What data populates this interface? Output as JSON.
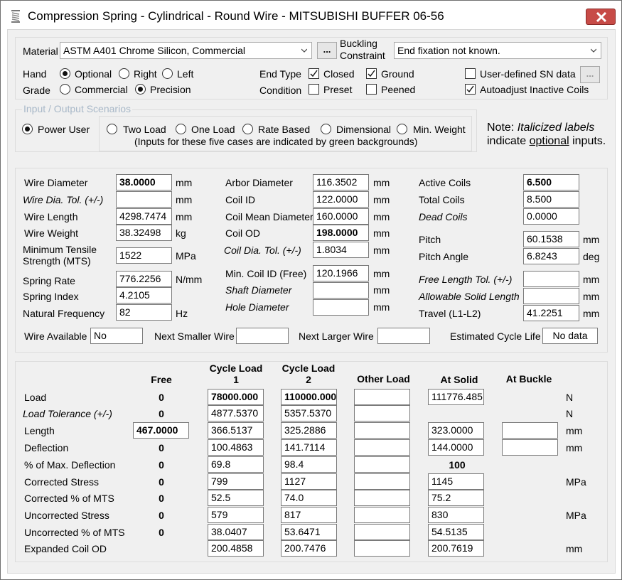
{
  "window": {
    "title": "Compression Spring - Cylindrical - Round Wire - MITSUBISHI BUFFER 06-56"
  },
  "icons": {
    "app": "spring-icon",
    "close": "close-icon",
    "dropdown": "chevron-down-icon",
    "check": "check-icon"
  },
  "colors": {
    "close_button": "#c74b47",
    "group_label": "#a8b8c8",
    "panel_bg": "#f0f0f0"
  },
  "top": {
    "material_label": "Material",
    "material_value": "ASTM A401 Chrome Silicon, Commercial",
    "material_more": "...",
    "buckling_label_1": "Buckling",
    "buckling_label_2": "Constraint",
    "buckling_value": "End fixation not known.",
    "hand_label": "Hand",
    "hand_options": [
      "Optional",
      "Right",
      "Left"
    ],
    "grade_label": "Grade",
    "grade_options": [
      "Commercial",
      "Precision"
    ],
    "endtype_label": "End Type",
    "endtype_closed": "Closed",
    "endtype_ground": "Ground",
    "condition_label": "Condition",
    "condition_preset": "Preset",
    "condition_peened": "Peened",
    "sn_label": "User-defined SN data",
    "sn_more": "...",
    "autoadjust_label": "Autoadjust Inactive Coils"
  },
  "scenarios": {
    "group_label": "Input / Output Scenarios",
    "power_user": "Power User",
    "options": [
      "Two Load",
      "One Load",
      "Rate Based",
      "Dimensional",
      "Min. Weight"
    ],
    "note": "(Inputs for these five cases are indicated by green backgrounds)",
    "side_note_prefix": "Note: ",
    "side_note_italic": "Italicized labels",
    "side_note_line2_a": "indicate ",
    "side_note_underline": "optional",
    "side_note_line2_b": " inputs."
  },
  "geometry": {
    "col1": {
      "wire_diameter": {
        "label": "Wire Diameter",
        "value": "38.0000",
        "unit": "mm"
      },
      "wire_tol": {
        "label": "Wire Dia. Tol. (+/-)",
        "value": "",
        "unit": "mm"
      },
      "wire_length": {
        "label": "Wire Length",
        "value": "4298.7474",
        "unit": "mm"
      },
      "wire_weight": {
        "label": "Wire Weight",
        "value": "38.32498",
        "unit": "kg"
      },
      "mts_label_1": "Minimum Tensile",
      "mts_label_2": "Strength  (MTS)",
      "mts_value": "1522",
      "mts_unit": "MPa",
      "spring_rate": {
        "label": "Spring Rate",
        "value": "776.2256",
        "unit": "N/mm"
      },
      "spring_index": {
        "label": "Spring Index",
        "value": "4.2105"
      },
      "nat_freq": {
        "label": "Natural Frequency",
        "value": "82",
        "unit": "Hz"
      }
    },
    "col2": {
      "arbor_dia": {
        "label": "Arbor Diameter",
        "value": "116.3502",
        "unit": "mm"
      },
      "coil_id": {
        "label": "Coil ID",
        "value": "122.0000",
        "unit": "mm"
      },
      "coil_mean": {
        "label": "Coil Mean Diameter",
        "value": "160.0000",
        "unit": "mm"
      },
      "coil_od": {
        "label": "Coil OD",
        "value": "198.0000",
        "unit": "mm"
      },
      "coil_tol": {
        "label": "Coil Dia. Tol. (+/-)",
        "value": "1.8034",
        "unit": "mm"
      },
      "min_coil_id": {
        "label": "Min. Coil ID  (Free)",
        "value": "120.1966",
        "unit": "mm"
      },
      "shaft_dia": {
        "label": "Shaft Diameter",
        "value": "",
        "unit": "mm"
      },
      "hole_dia": {
        "label": "Hole Diameter",
        "value": "",
        "unit": "mm"
      }
    },
    "col3": {
      "active_coils": {
        "label": "Active Coils",
        "value": "6.500"
      },
      "total_coils": {
        "label": "Total Coils",
        "value": "8.500"
      },
      "dead_coils": {
        "label": "Dead Coils",
        "value": "0.0000"
      },
      "pitch": {
        "label": "Pitch",
        "value": "60.1538",
        "unit": "mm"
      },
      "pitch_angle": {
        "label": "Pitch Angle",
        "value": "6.8243",
        "unit": "deg"
      },
      "free_len_tol": {
        "label": "Free Length Tol. (+/-)",
        "value": "",
        "unit": "mm"
      },
      "allow_solid": {
        "label": "Allowable Solid Length",
        "value": "",
        "unit": "mm"
      },
      "travel": {
        "label": "Travel (L1-L2)",
        "value": "41.2251",
        "unit": "mm"
      }
    },
    "wire_available": {
      "label": "Wire Available",
      "value": "No"
    },
    "next_smaller": {
      "label": "Next Smaller Wire",
      "value": ""
    },
    "next_larger": {
      "label": "Next Larger Wire",
      "value": ""
    },
    "cycle_life": {
      "label": "Estimated Cycle Life",
      "value": "No data"
    }
  },
  "loads": {
    "headers": {
      "free": "Free",
      "cycle1_a": "Cycle Load",
      "cycle1_b": "1",
      "cycle2_a": "Cycle Load",
      "cycle2_b": "2",
      "other": "Other Load",
      "solid": "At Solid",
      "buckle": "At Buckle"
    },
    "rows": [
      {
        "label": "Load",
        "free": "0",
        "c1": "78000.000",
        "c2": "110000.000",
        "other": "",
        "solid": "111776.485",
        "unit": "N"
      },
      {
        "label": "Load Tolerance (+/-)",
        "free": "0",
        "c1": "4877.5370",
        "c2": "5357.5370",
        "other": "",
        "unit": "N"
      },
      {
        "label": "Length",
        "free": "467.0000",
        "c1": "366.5137",
        "c2": "325.2886",
        "other": "",
        "solid": "323.0000",
        "buckle": "",
        "unit": "mm"
      },
      {
        "label": "Deflection",
        "free": "0",
        "c1": "100.4863",
        "c2": "141.7114",
        "other": "",
        "solid": "144.0000",
        "buckle": "",
        "unit": "mm"
      },
      {
        "label": "% of Max. Deflection",
        "free": "0",
        "c1": "69.8",
        "c2": "98.4",
        "other": "",
        "solid": "100"
      },
      {
        "label": "Corrected Stress",
        "free": "0",
        "c1": "799",
        "c2": "1127",
        "other": "",
        "solid": "1145",
        "unit": "MPa"
      },
      {
        "label": "Corrected % of MTS",
        "free": "0",
        "c1": "52.5",
        "c2": "74.0",
        "other": "",
        "solid": "75.2"
      },
      {
        "label": "Uncorrected Stress",
        "free": "0",
        "c1": "579",
        "c2": "817",
        "other": "",
        "solid": "830",
        "unit": "MPa"
      },
      {
        "label": "Uncorrected % of MTS",
        "free": "0",
        "c1": "38.0407",
        "c2": "53.6471",
        "other": "",
        "solid": "54.5135"
      },
      {
        "label": "Expanded Coil OD",
        "c1": "200.4858",
        "c2": "200.7476",
        "other": "",
        "solid": "200.7619",
        "unit": "mm"
      }
    ]
  }
}
